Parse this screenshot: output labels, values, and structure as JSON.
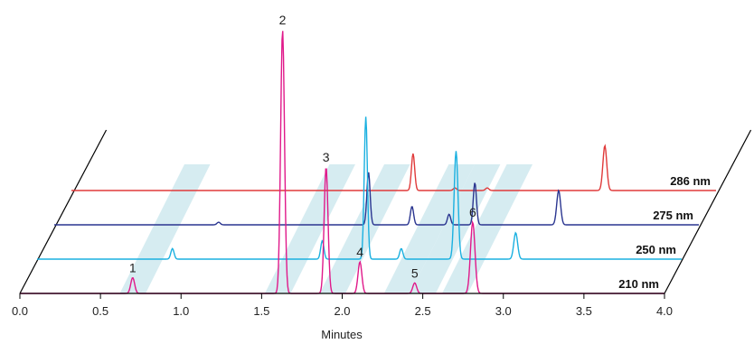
{
  "chart_data": {
    "type": "line",
    "title": "",
    "xlabel": "Minutes",
    "ylabel": "",
    "xlim": [
      0.0,
      4.0
    ],
    "x_ticks": [
      "0.0",
      "0.5",
      "1.0",
      "1.5",
      "2.0",
      "2.5",
      "3.0",
      "3.5",
      "4.0"
    ],
    "grid": false,
    "legend": "right, trace labels on each baseline",
    "style": "3D stacked chromatogram with diagonal highlight bands",
    "band_color": "#cfe9ee",
    "series": [
      {
        "name": "210 nm",
        "color": "#e0198a",
        "peaks": [
          {
            "rt": 0.7,
            "height": 0.06,
            "width": 0.012
          },
          {
            "rt": 1.63,
            "height": 1.0,
            "width": 0.012
          },
          {
            "rt": 1.9,
            "height": 0.48,
            "width": 0.012
          },
          {
            "rt": 2.11,
            "height": 0.12,
            "width": 0.012
          },
          {
            "rt": 2.45,
            "height": 0.04,
            "width": 0.012
          },
          {
            "rt": 2.81,
            "height": 0.27,
            "width": 0.014
          }
        ]
      },
      {
        "name": "250 nm",
        "color": "#1ab0e0",
        "peaks": [
          {
            "rt": 0.84,
            "height": 0.04,
            "width": 0.01
          },
          {
            "rt": 1.77,
            "height": 0.07,
            "width": 0.01
          },
          {
            "rt": 2.04,
            "height": 0.54,
            "width": 0.01
          },
          {
            "rt": 2.26,
            "height": 0.04,
            "width": 0.01
          },
          {
            "rt": 2.6,
            "height": 0.41,
            "width": 0.012
          },
          {
            "rt": 2.97,
            "height": 0.1,
            "width": 0.012
          }
        ]
      },
      {
        "name": "275 nm",
        "color": "#2a3590",
        "peaks": [
          {
            "rt": 1.02,
            "height": 0.01,
            "width": 0.01
          },
          {
            "rt": 1.95,
            "height": 0.2,
            "width": 0.01
          },
          {
            "rt": 2.22,
            "height": 0.07,
            "width": 0.01
          },
          {
            "rt": 2.45,
            "height": 0.04,
            "width": 0.01
          },
          {
            "rt": 2.61,
            "height": 0.16,
            "width": 0.01
          },
          {
            "rt": 3.13,
            "height": 0.13,
            "width": 0.012
          }
        ]
      },
      {
        "name": "286 nm",
        "color": "#e03a3a",
        "peaks": [
          {
            "rt": 2.12,
            "height": 0.14,
            "width": 0.01
          },
          {
            "rt": 2.38,
            "height": 0.01,
            "width": 0.01
          },
          {
            "rt": 2.58,
            "height": 0.01,
            "width": 0.01
          },
          {
            "rt": 3.31,
            "height": 0.17,
            "width": 0.012
          }
        ]
      }
    ],
    "peak_labels": [
      {
        "text": "1",
        "series": "210 nm",
        "rt": 0.7
      },
      {
        "text": "2",
        "series": "210 nm",
        "rt": 1.63
      },
      {
        "text": "3",
        "series": "210 nm",
        "rt": 1.9
      },
      {
        "text": "4",
        "series": "210 nm",
        "rt": 2.11
      },
      {
        "text": "5",
        "series": "210 nm",
        "rt": 2.45
      },
      {
        "text": "6",
        "series": "210 nm",
        "rt": 2.81
      }
    ]
  }
}
